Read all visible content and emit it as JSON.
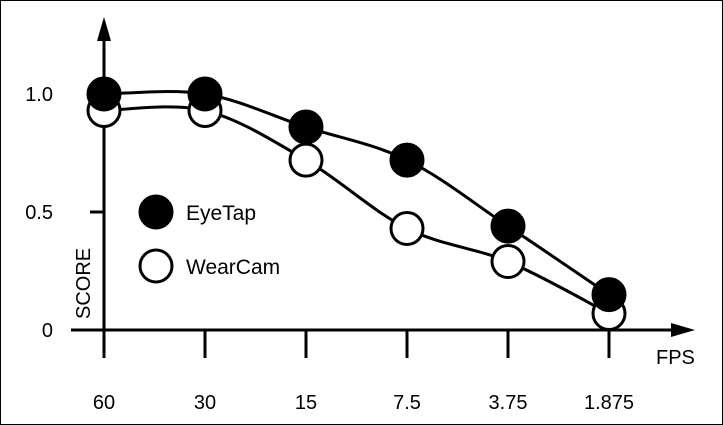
{
  "chart_data": {
    "type": "line",
    "title": "",
    "xlabel": "FPS",
    "ylabel": "SCORE",
    "categories": [
      "60",
      "30",
      "15",
      "7.5",
      "3.75",
      "1.875"
    ],
    "yticks": [
      "0",
      "0.5",
      "1.0"
    ],
    "ytick_values": [
      0,
      0.5,
      1.0
    ],
    "ylim": [
      0,
      1.0
    ],
    "grid": false,
    "legend_position": "center-left",
    "series": [
      {
        "name": "EyeTap",
        "marker": "filled-circle",
        "values": [
          1.0,
          1.0,
          0.86,
          0.72,
          0.44,
          0.15
        ]
      },
      {
        "name": "WearCam",
        "marker": "open-circle",
        "values": [
          0.93,
          0.93,
          0.72,
          0.43,
          0.29,
          0.07
        ]
      }
    ]
  }
}
